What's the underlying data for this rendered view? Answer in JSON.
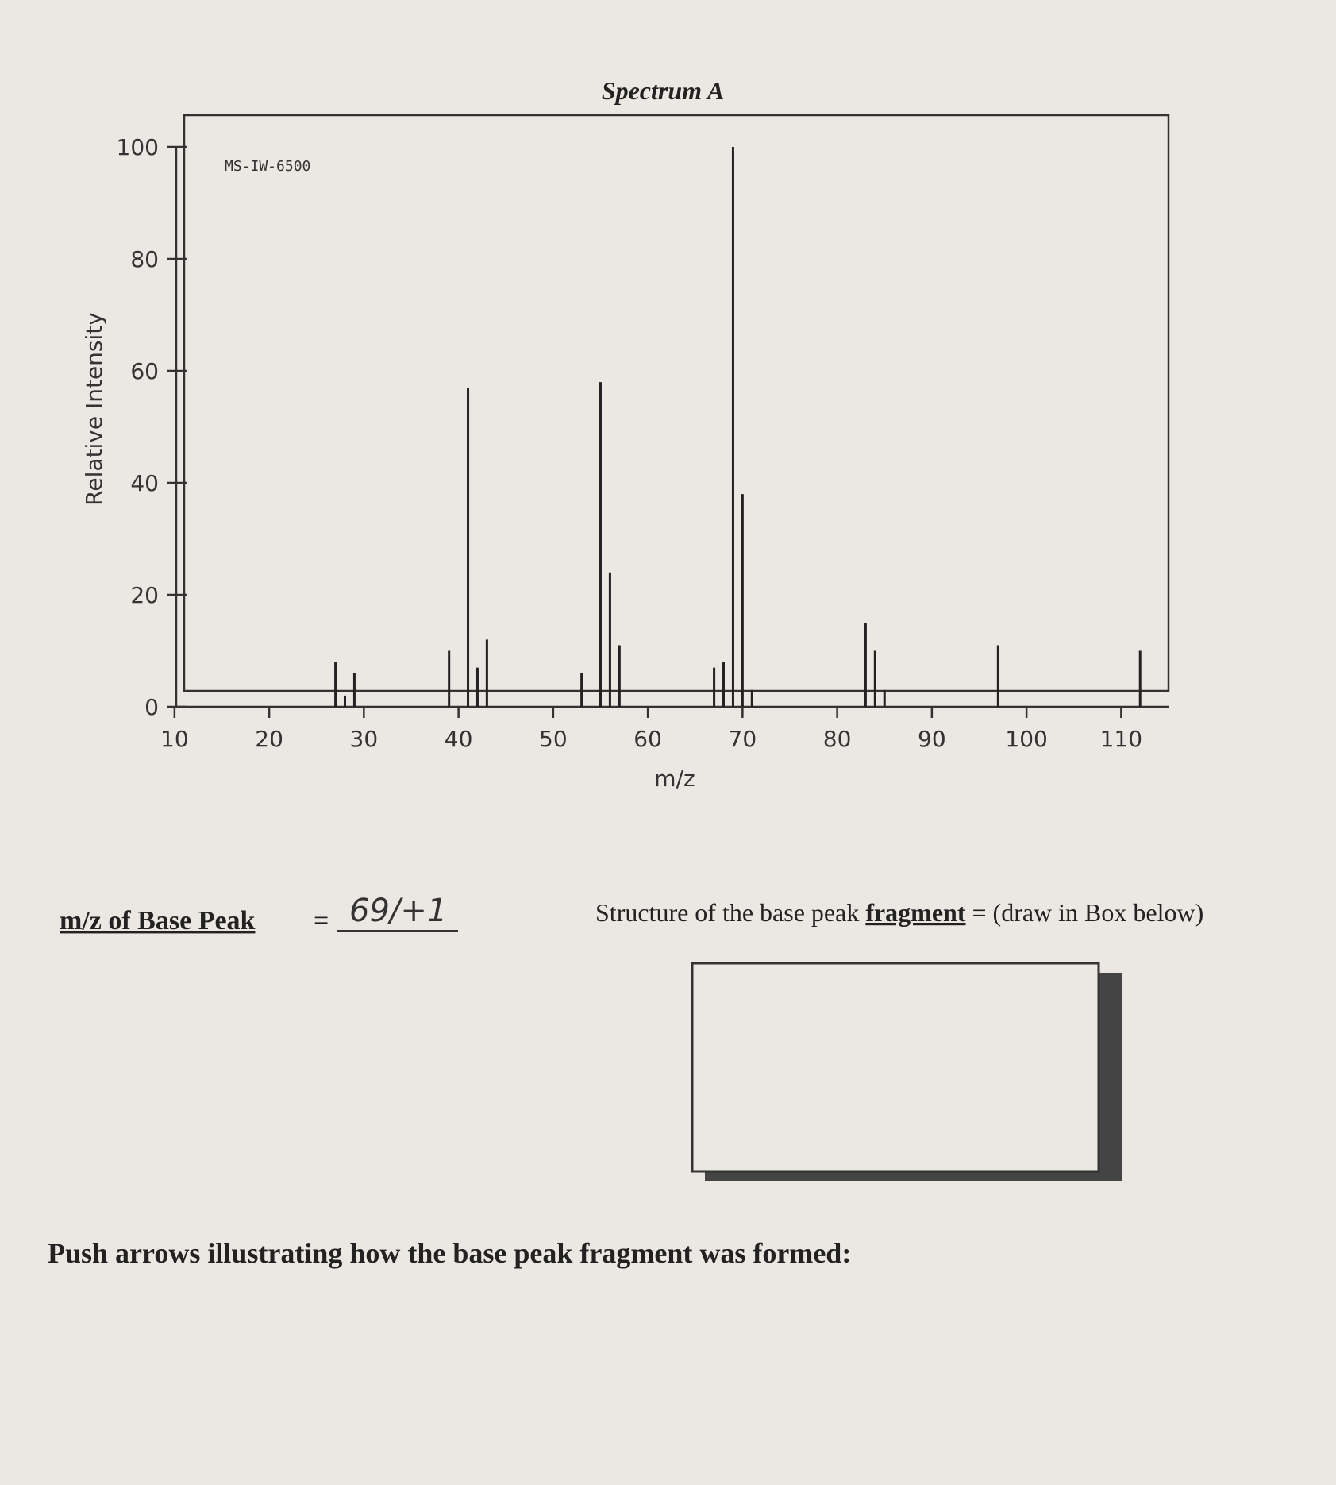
{
  "chart_data": {
    "type": "stem",
    "title": "Spectrum A",
    "annotation": "MS-IW-6500",
    "x_label": "m/z",
    "y_label": "Relative Intensity",
    "x": [
      27,
      28,
      29,
      39,
      41,
      42,
      43,
      53,
      55,
      56,
      57,
      67,
      68,
      69,
      70,
      71,
      83,
      84,
      85,
      97,
      112
    ],
    "values": [
      8,
      2,
      6,
      10,
      57,
      7,
      12,
      6,
      58,
      24,
      11,
      7,
      8,
      100,
      38,
      3,
      15,
      10,
      3,
      11,
      10
    ],
    "color": "#222222",
    "xlim": [
      8,
      115
    ],
    "xticks": [
      10,
      20,
      30,
      40,
      50,
      60,
      70,
      80,
      90,
      100,
      110
    ],
    "ylim": [
      0,
      100
    ],
    "yticks": [
      0,
      20,
      40,
      60,
      80,
      100
    ]
  },
  "worksheet": {
    "base_peak_label": "m/z of Base Peak",
    "equals": "=",
    "base_peak_answer": "69/+1",
    "structure_label": "Structure of the base peak",
    "structure_keyword": "fragment",
    "structure_rest": "= (draw in Box below)",
    "push_arrows": "Push arrows illustrating how the base peak fragment was formed:"
  }
}
